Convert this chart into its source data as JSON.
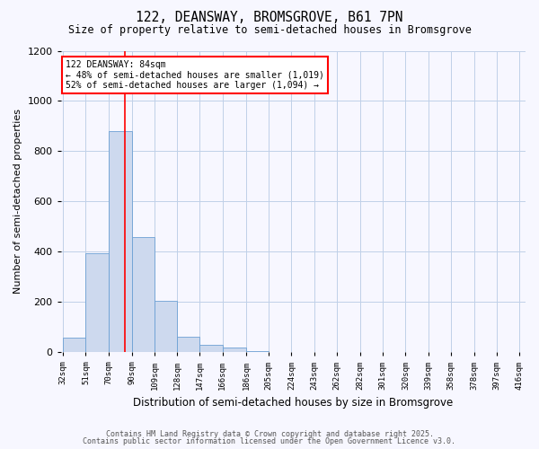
{
  "title": "122, DEANSWAY, BROMSGROVE, B61 7PN",
  "subtitle": "Size of property relative to semi-detached houses in Bromsgrove",
  "xlabel": "Distribution of semi-detached houses by size in Bromsgrove",
  "ylabel": "Number of semi-detached properties",
  "bar_values": [
    60,
    395,
    880,
    460,
    205,
    62,
    30,
    18,
    5,
    3,
    0,
    0,
    0,
    0,
    0,
    0,
    0,
    0,
    0,
    0
  ],
  "bin_labels": [
    "32sqm",
    "51sqm",
    "70sqm",
    "90sqm",
    "109sqm",
    "128sqm",
    "147sqm",
    "166sqm",
    "186sqm",
    "205sqm",
    "224sqm",
    "243sqm",
    "262sqm",
    "282sqm",
    "301sqm",
    "320sqm",
    "339sqm",
    "358sqm",
    "378sqm",
    "397sqm",
    "416sqm"
  ],
  "bar_color": "#cdd9ee",
  "bar_edge_color": "#6ca0d4",
  "vline_x": 84,
  "vline_color": "red",
  "annotation_title": "122 DEANSWAY: 84sqm",
  "annotation_line2": "← 48% of semi-detached houses are smaller (1,019)",
  "annotation_line3": "52% of semi-detached houses are larger (1,094) →",
  "annotation_box_color": "white",
  "annotation_box_edge": "red",
  "ylim": [
    0,
    1200
  ],
  "yticks": [
    0,
    200,
    400,
    600,
    800,
    1000,
    1200
  ],
  "grid_color": "#c0d0e8",
  "background_color": "#f7f7ff",
  "footer1": "Contains HM Land Registry data © Crown copyright and database right 2025.",
  "footer2": "Contains public sector information licensed under the Open Government Licence v3.0.",
  "bin_edges": [
    32,
    51,
    70,
    90,
    109,
    128,
    147,
    166,
    186,
    205,
    224,
    243,
    262,
    282,
    301,
    320,
    339,
    358,
    378,
    397,
    416
  ]
}
